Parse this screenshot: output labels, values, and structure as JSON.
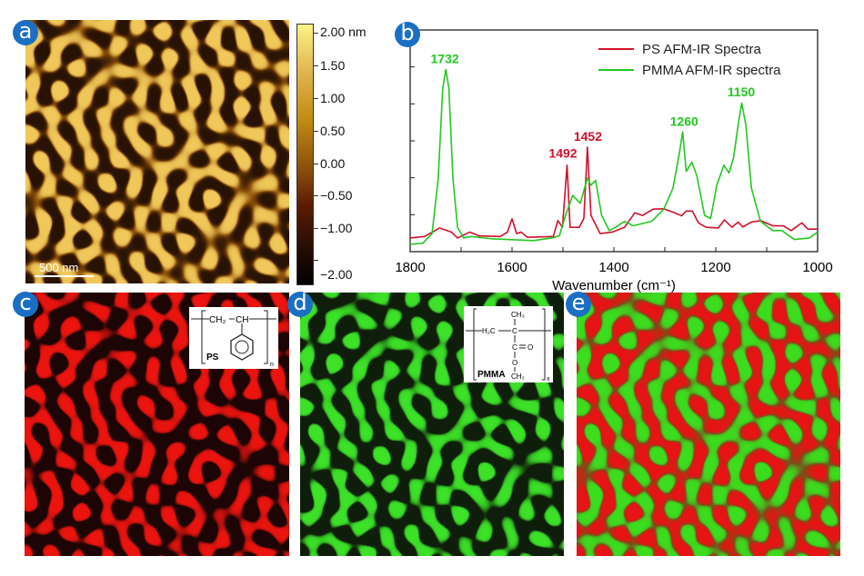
{
  "panels": {
    "a": "a",
    "b": "b",
    "c": "c",
    "d": "d",
    "e": "e"
  },
  "colorbar": {
    "labels": [
      "2.00 nm",
      "1.50",
      "1.00",
      "0.50",
      "0.00",
      "−0.50",
      "−1.00",
      "−2.00"
    ],
    "colormap": [
      "#000000",
      "#5a1a04",
      "#c08a12",
      "#fbf387"
    ]
  },
  "scale_bar": "500 nm",
  "ps_inset": {
    "ch2": "CH₂",
    "ch": "CH",
    "name": "PS",
    "sub": "n"
  },
  "pmma_inset": {
    "h2c": "H₂C",
    "c": "C",
    "ch3_top": "CH₃",
    "co": "C",
    "o_dbl": "O",
    "o": "O",
    "ch3_bot": "CH₃",
    "name": "PMMA",
    "sub": "x"
  },
  "colors": {
    "ps": "#d0102a",
    "pmma": "#22c81e",
    "badge": "#1a6fc4"
  },
  "chart_data": {
    "type": "line",
    "xlabel": "Wavenumber (cm⁻¹)",
    "xlim": [
      1800,
      1000
    ],
    "ylim": [
      0,
      6
    ],
    "x_ticks": [
      "1800",
      "1600",
      "1400",
      "1200",
      "1000"
    ],
    "y_tick_labels": "none",
    "grid": false,
    "legend": "top-right",
    "series": [
      {
        "name": "PS AFM-IR Spectra",
        "color": "#d0102a",
        "points": [
          [
            1800,
            0.37
          ],
          [
            1772,
            0.41
          ],
          [
            1742,
            0.64
          ],
          [
            1719,
            0.53
          ],
          [
            1707,
            0.37
          ],
          [
            1683,
            0.53
          ],
          [
            1665,
            0.43
          ],
          [
            1623,
            0.41
          ],
          [
            1609,
            0.53
          ],
          [
            1600,
            0.89
          ],
          [
            1591,
            0.49
          ],
          [
            1582,
            0.53
          ],
          [
            1570,
            0.39
          ],
          [
            1519,
            0.41
          ],
          [
            1510,
            0.84
          ],
          [
            1501,
            0.66
          ],
          [
            1492,
            2.34
          ],
          [
            1486,
            0.66
          ],
          [
            1468,
            0.66
          ],
          [
            1459,
            0.9
          ],
          [
            1452,
            2.83
          ],
          [
            1445,
            0.98
          ],
          [
            1427,
            0.49
          ],
          [
            1403,
            0.53
          ],
          [
            1379,
            0.66
          ],
          [
            1359,
            1.05
          ],
          [
            1344,
            0.98
          ],
          [
            1323,
            1.15
          ],
          [
            1302,
            1.16
          ],
          [
            1284,
            1.07
          ],
          [
            1267,
            0.97
          ],
          [
            1258,
            1.1
          ],
          [
            1246,
            1.1
          ],
          [
            1234,
            0.78
          ],
          [
            1219,
            0.66
          ],
          [
            1195,
            0.64
          ],
          [
            1183,
            0.86
          ],
          [
            1168,
            0.66
          ],
          [
            1156,
            0.8
          ],
          [
            1147,
            0.67
          ],
          [
            1130,
            0.8
          ],
          [
            1112,
            0.84
          ],
          [
            1088,
            0.7
          ],
          [
            1067,
            0.7
          ],
          [
            1052,
            0.57
          ],
          [
            1031,
            0.78
          ],
          [
            1019,
            0.61
          ],
          [
            1000,
            0.61
          ]
        ]
      },
      {
        "name": "PMMA AFM-IR spectra",
        "color": "#22c81e",
        "points": [
          [
            1800,
            0.2
          ],
          [
            1775,
            0.23
          ],
          [
            1757,
            0.49
          ],
          [
            1745,
            1.97
          ],
          [
            1736,
            4.43
          ],
          [
            1730,
            4.93
          ],
          [
            1724,
            4.43
          ],
          [
            1716,
            1.97
          ],
          [
            1707,
            0.66
          ],
          [
            1695,
            0.37
          ],
          [
            1680,
            0.41
          ],
          [
            1641,
            0.35
          ],
          [
            1558,
            0.3
          ],
          [
            1522,
            0.37
          ],
          [
            1507,
            0.43
          ],
          [
            1495,
            0.98
          ],
          [
            1481,
            1.52
          ],
          [
            1466,
            1.31
          ],
          [
            1452,
            1.99
          ],
          [
            1445,
            1.8
          ],
          [
            1436,
            1.93
          ],
          [
            1424,
            0.98
          ],
          [
            1409,
            0.57
          ],
          [
            1397,
            0.66
          ],
          [
            1379,
            0.82
          ],
          [
            1362,
            0.7
          ],
          [
            1326,
            0.82
          ],
          [
            1302,
            1.15
          ],
          [
            1284,
            1.72
          ],
          [
            1272,
            2.62
          ],
          [
            1265,
            3.24
          ],
          [
            1258,
            2.17
          ],
          [
            1247,
            2.42
          ],
          [
            1237,
            2.05
          ],
          [
            1222,
            0.98
          ],
          [
            1210,
            0.9
          ],
          [
            1198,
            1.8
          ],
          [
            1184,
            2.34
          ],
          [
            1174,
            2.13
          ],
          [
            1165,
            2.54
          ],
          [
            1156,
            3.44
          ],
          [
            1149,
            4.02
          ],
          [
            1141,
            3.44
          ],
          [
            1130,
            1.72
          ],
          [
            1112,
            0.82
          ],
          [
            1088,
            0.57
          ],
          [
            1070,
            0.57
          ],
          [
            1046,
            0.33
          ],
          [
            1016,
            0.37
          ],
          [
            1000,
            0.53
          ]
        ]
      }
    ],
    "annotations": [
      {
        "text": "1732",
        "x": 1732,
        "y": 5.1,
        "series": "PMMA AFM-IR spectra"
      },
      {
        "text": "1492",
        "x": 1500,
        "y": 2.55,
        "series": "PS AFM-IR Spectra"
      },
      {
        "text": "1452",
        "x": 1451,
        "y": 3.0,
        "series": "PS AFM-IR Spectra"
      },
      {
        "text": "1260",
        "x": 1262,
        "y": 3.4,
        "series": "PMMA AFM-IR spectra"
      },
      {
        "text": "1150",
        "x": 1150,
        "y": 4.2,
        "series": "PMMA AFM-IR spectra"
      }
    ]
  }
}
